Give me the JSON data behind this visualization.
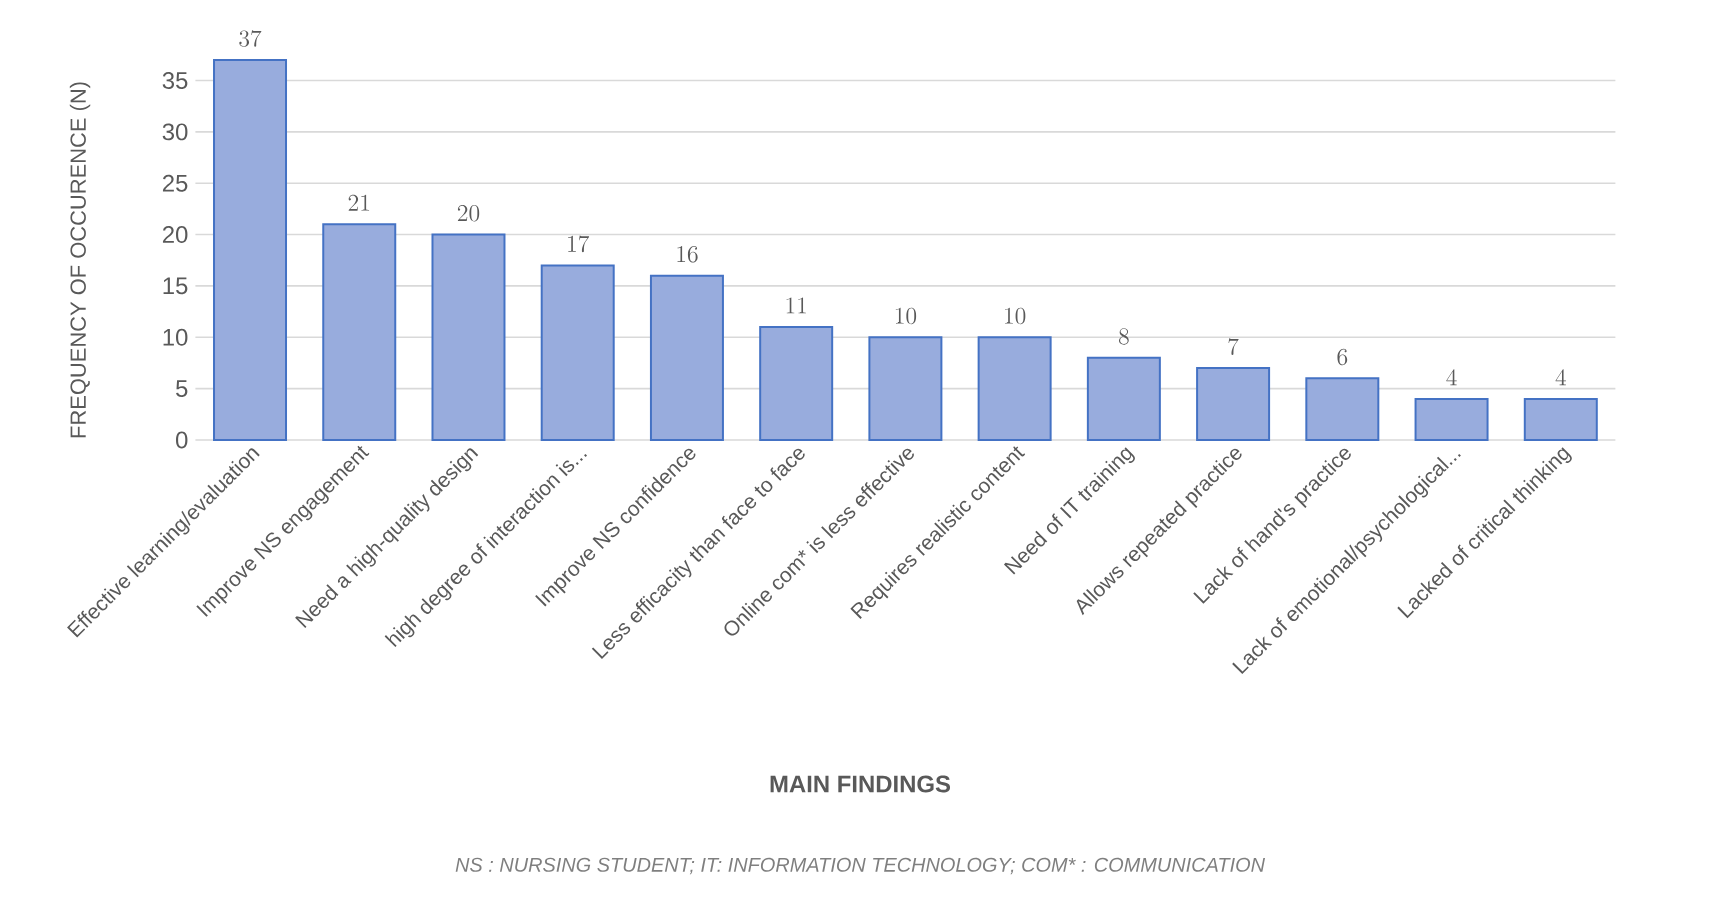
{
  "chart_data": {
    "type": "bar",
    "xlabel": "MAIN FINDINGS",
    "ylabel": "FREQUENCY OF OCCURENCE (N)",
    "categories": [
      "Effective learning/evaluation",
      "Improve NS engagement",
      "Need a high-quality design",
      "high degree of interaction is...",
      "Improve NS confidence",
      "Less efficacity than face to face",
      "Online com* is less effective",
      "Requires realistic content",
      "Need of IT training",
      "Allows repeated practice",
      "Lack of hand's practice",
      "Lack of emotional/psychological...",
      "Lacked of critical thinking"
    ],
    "values": [
      37,
      21,
      20,
      17,
      16,
      11,
      10,
      10,
      8,
      7,
      6,
      4,
      4
    ],
    "color": "#98acdd",
    "ylim": [
      0,
      37
    ],
    "yticks": [
      0,
      5,
      10,
      15,
      20,
      25,
      30,
      35
    ],
    "grid": "y",
    "data_labels": true,
    "annotations": [
      "NS : NURSING STUDENT; IT: INFORMATION TECHNOLOGY; COM* : COMMUNICATION"
    ]
  }
}
